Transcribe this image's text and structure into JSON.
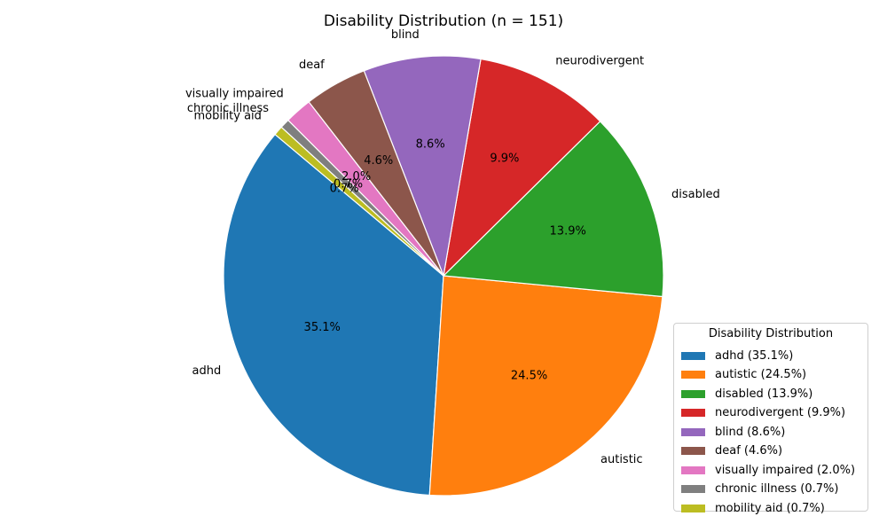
{
  "chart_data": {
    "type": "pie",
    "title": "Disability Distribution (n = 151)",
    "slices": [
      {
        "label": "adhd",
        "value": 35.1,
        "pct_label": "35.1%",
        "legend": "adhd (35.1%)",
        "color": "#1f77b4"
      },
      {
        "label": "autistic",
        "value": 24.5,
        "pct_label": "24.5%",
        "legend": "autistic (24.5%)",
        "color": "#ff7f0e"
      },
      {
        "label": "disabled",
        "value": 13.9,
        "pct_label": "13.9%",
        "legend": "disabled (13.9%)",
        "color": "#2ca02c"
      },
      {
        "label": "neurodivergent",
        "value": 9.9,
        "pct_label": "9.9%",
        "legend": "neurodivergent (9.9%)",
        "color": "#d62728"
      },
      {
        "label": "blind",
        "value": 8.6,
        "pct_label": "8.6%",
        "legend": "blind (8.6%)",
        "color": "#9467bd"
      },
      {
        "label": "deaf",
        "value": 4.6,
        "pct_label": "4.6%",
        "legend": "deaf (4.6%)",
        "color": "#8c564b"
      },
      {
        "label": "visually impaired",
        "value": 2.0,
        "pct_label": "2.0%",
        "legend": "visually impaired (2.0%)",
        "color": "#e377c2"
      },
      {
        "label": "chronic illness",
        "value": 0.7,
        "pct_label": "0.7%",
        "legend": "chronic illness (0.7%)",
        "color": "#7f7f7f"
      },
      {
        "label": "mobility aid",
        "value": 0.7,
        "pct_label": "0.7%",
        "legend": "mobility aid (0.7%)",
        "color": "#bcbd22"
      }
    ],
    "start_angle_deg": 140,
    "direction": "counterclockwise",
    "legend": {
      "title": "Disability Distribution",
      "placement": "lower-right"
    }
  }
}
